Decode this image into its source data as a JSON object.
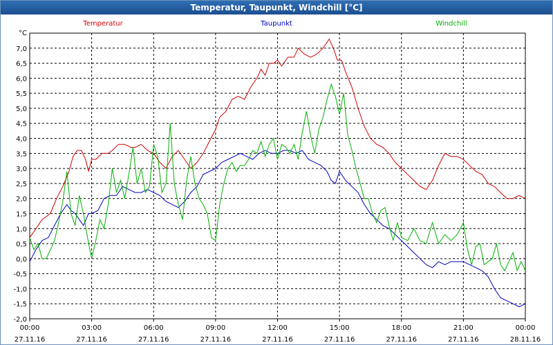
{
  "window": {
    "title": "Temperatur, Taupunkt, Windchill [°C]"
  },
  "chart_data": {
    "type": "line",
    "title": "Temperatur, Taupunkt, Windchill [°C]",
    "ylabel": "°C",
    "ylim": [
      -2.0,
      7.5
    ],
    "xlim_hours": [
      0,
      24
    ],
    "grid": true,
    "y_ticks": [
      "7,0",
      "6,5",
      "6,0",
      "5,5",
      "5,0",
      "4,5",
      "4,0",
      "3,5",
      "3,0",
      "2,5",
      "2,0",
      "1,5",
      "1,0",
      "0,5",
      "0,0",
      "-0,5",
      "-1,0",
      "-1,5",
      "-2,0"
    ],
    "y_tick_values": [
      7.0,
      6.5,
      6.0,
      5.5,
      5.0,
      4.5,
      4.0,
      3.5,
      3.0,
      2.5,
      2.0,
      1.5,
      1.0,
      0.5,
      0.0,
      -0.5,
      -1.0,
      -1.5,
      -2.0
    ],
    "x_ticks": [
      {
        "time": "00:00",
        "date": "27.11.16",
        "hour": 0
      },
      {
        "time": "03:00",
        "date": "27.11.16",
        "hour": 3
      },
      {
        "time": "06:00",
        "date": "27.11.16",
        "hour": 6
      },
      {
        "time": "09:00",
        "date": "27.11.16",
        "hour": 9
      },
      {
        "time": "12:00",
        "date": "27.11.16",
        "hour": 12
      },
      {
        "time": "15:00",
        "date": "27.11.16",
        "hour": 15
      },
      {
        "time": "18:00",
        "date": "27.11.16",
        "hour": 18
      },
      {
        "time": "21:00",
        "date": "27.11.16",
        "hour": 21
      },
      {
        "time": "00:00",
        "date": "28.11.16",
        "hour": 24
      }
    ],
    "series": [
      {
        "name": "Temperatur",
        "color": "#d00000",
        "x": [
          0,
          0.3,
          0.6,
          1.0,
          1.3,
          1.6,
          1.9,
          2.1,
          2.3,
          2.5,
          2.7,
          2.85,
          3.0,
          3.2,
          3.5,
          3.8,
          4.0,
          4.3,
          4.6,
          4.9,
          5.1,
          5.4,
          5.7,
          6.0,
          6.3,
          6.6,
          6.9,
          7.2,
          7.5,
          7.8,
          8.1,
          8.4,
          8.7,
          9.0,
          9.2,
          9.5,
          9.8,
          10.1,
          10.4,
          10.7,
          11.0,
          11.2,
          11.4,
          11.6,
          11.8,
          12.0,
          12.2,
          12.5,
          12.8,
          13.0,
          13.3,
          13.6,
          13.9,
          14.2,
          14.5,
          14.7,
          14.9,
          15.1,
          15.3,
          15.6,
          15.9,
          16.2,
          16.5,
          16.8,
          17.1,
          17.4,
          17.7,
          18.0,
          18.3,
          18.6,
          18.9,
          19.2,
          19.5,
          19.8,
          20.1,
          20.4,
          20.7,
          21.0,
          21.3,
          21.6,
          21.9,
          22.2,
          22.5,
          22.8,
          23.1,
          23.4,
          23.7,
          24.0
        ],
        "values": [
          0.7,
          1.0,
          1.3,
          1.5,
          2.0,
          2.4,
          2.9,
          3.4,
          3.6,
          3.6,
          3.3,
          2.9,
          3.3,
          3.3,
          3.5,
          3.5,
          3.6,
          3.8,
          3.8,
          3.7,
          3.7,
          3.8,
          3.6,
          3.5,
          3.2,
          3.0,
          3.4,
          3.6,
          3.3,
          3.0,
          3.2,
          3.5,
          3.9,
          4.3,
          4.7,
          4.9,
          5.3,
          5.4,
          5.3,
          5.7,
          6.0,
          6.3,
          6.1,
          6.5,
          6.5,
          6.6,
          6.4,
          6.7,
          6.7,
          7.0,
          6.8,
          6.7,
          6.8,
          7.0,
          7.3,
          7.0,
          6.6,
          6.6,
          6.2,
          5.7,
          5.0,
          4.4,
          4.0,
          3.8,
          3.7,
          3.5,
          3.2,
          3.0,
          2.8,
          2.6,
          2.4,
          2.3,
          2.6,
          3.1,
          3.5,
          3.4,
          3.4,
          3.3,
          3.1,
          2.9,
          2.8,
          2.5,
          2.4,
          2.2,
          2.0,
          2.0,
          2.1,
          2.0
        ]
      },
      {
        "name": "Taupunkt",
        "color": "#0000c0",
        "x": [
          0,
          0.3,
          0.6,
          0.9,
          1.2,
          1.5,
          1.8,
          2.0,
          2.2,
          2.4,
          2.6,
          2.85,
          3.0,
          3.3,
          3.6,
          3.9,
          4.2,
          4.5,
          4.8,
          5.1,
          5.4,
          5.7,
          6.0,
          6.3,
          6.6,
          6.9,
          7.2,
          7.5,
          7.8,
          8.1,
          8.4,
          8.7,
          9.0,
          9.3,
          9.6,
          9.9,
          10.2,
          10.5,
          10.8,
          11.1,
          11.4,
          11.7,
          12.0,
          12.3,
          12.6,
          12.9,
          13.2,
          13.5,
          13.8,
          14.1,
          14.4,
          14.6,
          14.8,
          15.0,
          15.3,
          15.6,
          15.9,
          16.2,
          16.5,
          16.8,
          17.1,
          17.4,
          17.7,
          18.0,
          18.3,
          18.6,
          18.9,
          19.2,
          19.5,
          19.8,
          20.1,
          20.4,
          20.7,
          21.0,
          21.3,
          21.6,
          21.9,
          22.2,
          22.5,
          22.8,
          23.1,
          23.4,
          23.7,
          24.0
        ],
        "values": [
          -0.1,
          0.3,
          0.6,
          0.7,
          1.1,
          1.5,
          1.8,
          1.6,
          1.5,
          1.3,
          1.1,
          1.5,
          1.5,
          1.6,
          2.0,
          2.1,
          2.1,
          2.4,
          2.3,
          2.2,
          2.2,
          2.3,
          2.2,
          2.1,
          1.9,
          1.8,
          1.7,
          1.9,
          2.2,
          2.4,
          2.8,
          2.9,
          3.0,
          3.2,
          3.3,
          3.4,
          3.5,
          3.4,
          3.3,
          3.5,
          3.6,
          3.5,
          3.5,
          3.6,
          3.6,
          3.5,
          3.6,
          3.3,
          3.2,
          3.1,
          2.9,
          2.6,
          2.5,
          2.9,
          2.6,
          2.4,
          2.2,
          1.8,
          1.5,
          1.3,
          1.1,
          1.0,
          0.8,
          0.6,
          0.4,
          0.2,
          0.0,
          -0.2,
          -0.3,
          -0.1,
          -0.2,
          -0.1,
          -0.1,
          -0.1,
          -0.2,
          -0.3,
          -0.4,
          -0.6,
          -1.0,
          -1.3,
          -1.4,
          -1.5,
          -1.6,
          -1.5
        ]
      },
      {
        "name": "Windchill",
        "color": "#00b000",
        "x": [
          0,
          0.2,
          0.4,
          0.6,
          0.8,
          1.0,
          1.2,
          1.4,
          1.6,
          1.8,
          2.0,
          2.2,
          2.4,
          2.6,
          2.8,
          3.0,
          3.2,
          3.4,
          3.6,
          3.8,
          4.0,
          4.2,
          4.4,
          4.6,
          4.8,
          5.0,
          5.2,
          5.4,
          5.6,
          5.8,
          6.0,
          6.2,
          6.4,
          6.6,
          6.8,
          7.0,
          7.2,
          7.4,
          7.6,
          7.8,
          8.0,
          8.2,
          8.4,
          8.6,
          8.8,
          9.0,
          9.2,
          9.4,
          9.6,
          9.8,
          10.0,
          10.2,
          10.4,
          10.6,
          10.8,
          11.0,
          11.2,
          11.4,
          11.6,
          11.8,
          12.0,
          12.2,
          12.4,
          12.6,
          12.8,
          13.0,
          13.2,
          13.4,
          13.6,
          13.8,
          14.0,
          14.2,
          14.4,
          14.6,
          14.8,
          15.0,
          15.2,
          15.4,
          15.6,
          15.8,
          16.0,
          16.2,
          16.4,
          16.6,
          16.8,
          17.0,
          17.2,
          17.4,
          17.6,
          17.8,
          18.0,
          18.3,
          18.6,
          18.9,
          19.2,
          19.5,
          19.8,
          20.1,
          20.4,
          20.7,
          21.0,
          21.2,
          21.4,
          21.6,
          21.8,
          22.0,
          22.2,
          22.4,
          22.6,
          22.8,
          23.0,
          23.2,
          23.4,
          23.6,
          23.8,
          24.0
        ],
        "values": [
          0.7,
          0.3,
          0.5,
          0.0,
          0.0,
          0.3,
          0.6,
          1.2,
          1.9,
          2.9,
          1.5,
          1.1,
          2.1,
          1.5,
          0.7,
          0.0,
          0.6,
          1.3,
          1.0,
          1.8,
          3.0,
          2.2,
          2.6,
          2.0,
          2.8,
          3.7,
          2.5,
          3.0,
          2.2,
          2.4,
          3.8,
          3.4,
          2.2,
          2.5,
          4.5,
          2.5,
          1.8,
          1.3,
          2.6,
          3.4,
          2.5,
          2.0,
          1.8,
          1.5,
          0.7,
          0.6,
          1.8,
          2.5,
          3.0,
          3.2,
          2.9,
          3.1,
          3.1,
          3.3,
          3.6,
          3.5,
          3.9,
          3.4,
          3.8,
          4.0,
          3.3,
          3.8,
          3.7,
          3.5,
          3.8,
          3.3,
          4.2,
          4.9,
          4.1,
          3.5,
          4.3,
          4.7,
          5.3,
          5.8,
          5.4,
          4.8,
          5.5,
          4.1,
          3.6,
          3.0,
          2.5,
          2.0,
          2.0,
          1.5,
          1.2,
          1.6,
          1.7,
          1.1,
          0.6,
          1.2,
          0.7,
          0.6,
          1.0,
          0.6,
          0.5,
          1.2,
          0.5,
          0.8,
          0.6,
          0.8,
          1.2,
          0.3,
          -0.2,
          0.4,
          0.5,
          -0.2,
          -0.1,
          0.0,
          0.5,
          -0.2,
          -0.4,
          -0.1,
          0.2,
          -0.4,
          -0.1,
          -0.4
        ]
      }
    ]
  }
}
